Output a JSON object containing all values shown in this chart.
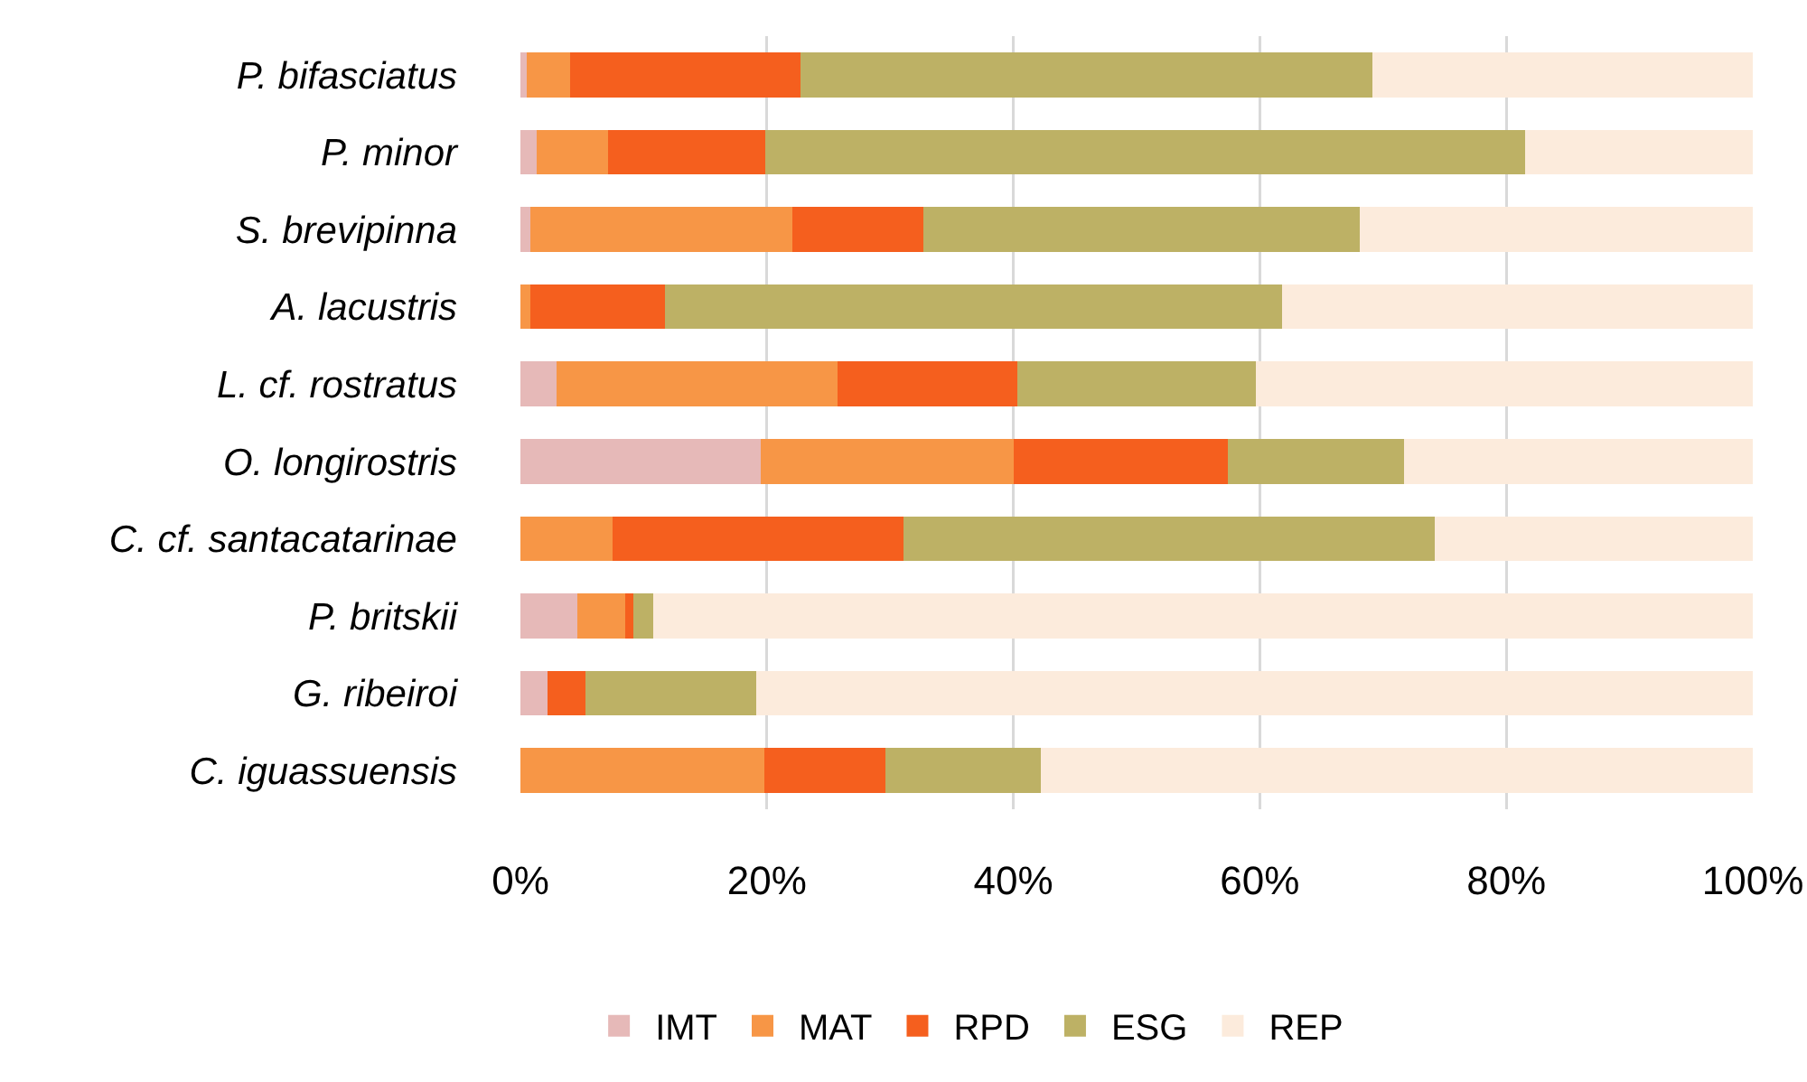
{
  "chart_data": {
    "type": "bar",
    "orientation": "horizontal",
    "stacked": true,
    "categories": [
      "P. bifasciatus",
      "P. minor",
      "S. brevipinna",
      "A. lacustris",
      "L. cf. rostratus",
      "O. longirostris",
      "C. cf. santacatarinae",
      "P. britskii",
      "G. ribeiroi",
      "C. iguassuensis"
    ],
    "series": [
      {
        "name": "IMT",
        "color": "#e6b9b8",
        "values": [
          0.5,
          1.3,
          0.8,
          0,
          2.9,
          19.5,
          0,
          4.6,
          2.2,
          0
        ]
      },
      {
        "name": "MAT",
        "color": "#f79646",
        "values": [
          3.5,
          5.8,
          21.3,
          0.8,
          22.8,
          20.5,
          7.5,
          3.9,
          0,
          19.8
        ]
      },
      {
        "name": "RPD",
        "color": "#f55f1e",
        "values": [
          18.7,
          12.8,
          10.6,
          10.9,
          14.6,
          17.4,
          23.6,
          0.7,
          3.1,
          9.8
        ]
      },
      {
        "name": "ESG",
        "color": "#bdb165",
        "values": [
          46.4,
          61.6,
          35.4,
          50.1,
          19.4,
          14.3,
          43.1,
          1.6,
          13.8,
          12.6
        ]
      },
      {
        "name": "REP",
        "color": "#fcebdc",
        "values": [
          30.9,
          18.5,
          31.9,
          38.2,
          40.3,
          28.3,
          25.8,
          89.2,
          80.9,
          57.8
        ]
      }
    ],
    "xlim": [
      0,
      100
    ],
    "xticks": [
      {
        "value": 0,
        "label": "0%"
      },
      {
        "value": 20,
        "label": "20%"
      },
      {
        "value": 40,
        "label": "40%"
      },
      {
        "value": 60,
        "label": "60%"
      },
      {
        "value": 80,
        "label": "80%"
      },
      {
        "value": 100,
        "label": "100%"
      }
    ],
    "grid": "x",
    "legend": "bottom"
  }
}
